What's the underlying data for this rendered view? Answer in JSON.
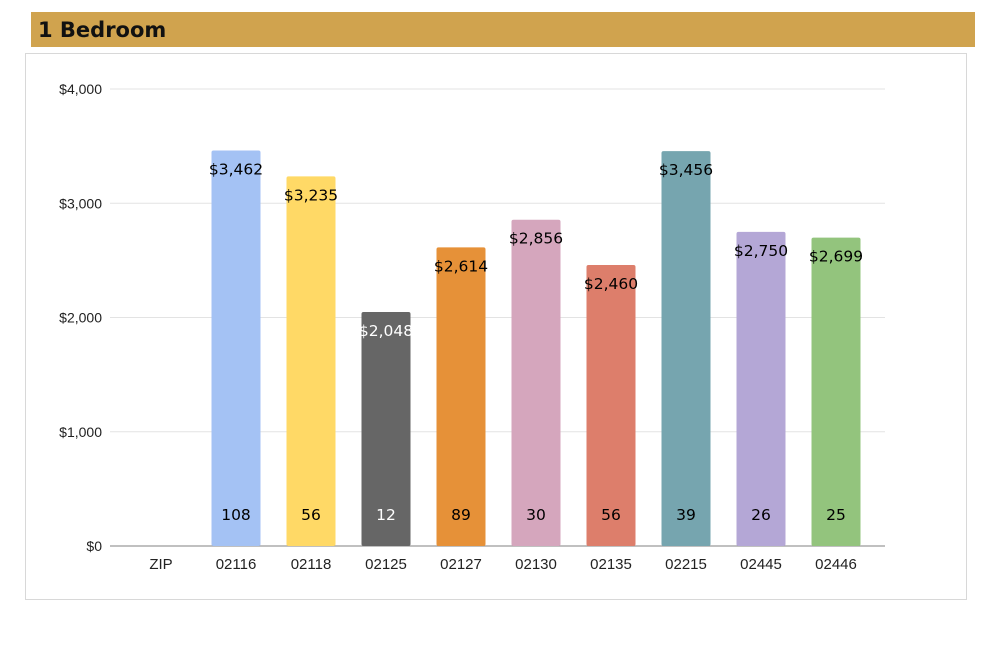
{
  "header": {
    "title": "1 Bedroom"
  },
  "colors": {
    "title_bar": "#d0a34e",
    "bars": [
      "#a4c2f4",
      "#ffd966",
      "#666666",
      "#e69138",
      "#d5a6bd",
      "#dd7e6b",
      "#76a5af",
      "#b4a7d6",
      "#93c47d"
    ],
    "bar_label_text": [
      "#000000",
      "#000000",
      "#ffffff",
      "#000000",
      "#000000",
      "#000000",
      "#000000",
      "#000000",
      "#000000"
    ]
  },
  "chart_data": {
    "type": "bar",
    "categories": [
      "ZIP",
      "02116",
      "02118",
      "02125",
      "02127",
      "02130",
      "02135",
      "02215",
      "02445",
      "02446"
    ],
    "values": [
      null,
      3462,
      3235,
      2048,
      2614,
      2856,
      2460,
      3456,
      2750,
      2699
    ],
    "value_labels": [
      "",
      "$3,462",
      "$3,235",
      "$2,048",
      "$2,614",
      "$2,856",
      "$2,460",
      "$3,456",
      "$2,750",
      "$2,699"
    ],
    "counts": [
      "",
      "108",
      "56",
      "12",
      "89",
      "30",
      "56",
      "39",
      "26",
      "25"
    ],
    "yticks": [
      0,
      1000,
      2000,
      3000,
      4000
    ],
    "ytick_labels": [
      "$0",
      "$1,000",
      "$2,000",
      "$3,000",
      "$4,000"
    ],
    "ylim": [
      0,
      4000
    ],
    "grid": true,
    "legend": "none"
  }
}
